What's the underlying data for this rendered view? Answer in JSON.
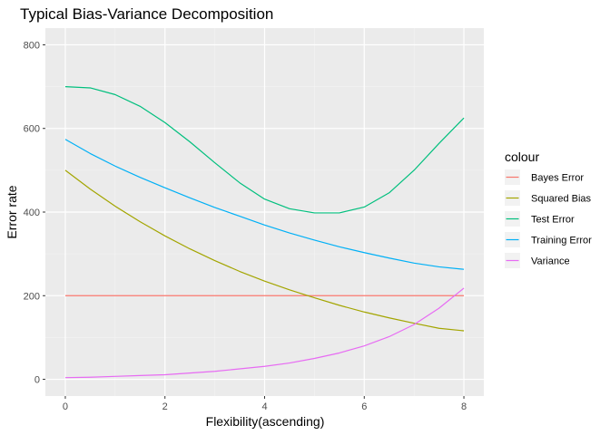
{
  "chart_data": {
    "type": "line",
    "title": "Typical Bias-Variance Decomposition",
    "xlabel": "Flexibility(ascending)",
    "ylabel": "Error rate",
    "xlim": [
      -0.4,
      8.4
    ],
    "ylim": [
      -40,
      840
    ],
    "x_ticks": [
      0,
      2,
      4,
      6,
      8
    ],
    "y_ticks": [
      0,
      200,
      400,
      600,
      800
    ],
    "grid": true,
    "background": "#ebebeb",
    "legend": {
      "title": "colour",
      "position": "right"
    },
    "x": [
      0,
      0.5,
      1,
      1.5,
      2,
      2.5,
      3,
      3.5,
      4,
      4.5,
      5,
      5.5,
      6,
      6.5,
      7,
      7.5,
      8
    ],
    "series": [
      {
        "name": "Bayes Error",
        "color": "#F8766D",
        "values": [
          200,
          200,
          200,
          200,
          200,
          200,
          200,
          200,
          200,
          200,
          200,
          200,
          200,
          200,
          200,
          200,
          200
        ]
      },
      {
        "name": "Squared Bias",
        "color": "#A3A500",
        "values": [
          500,
          455,
          414,
          377,
          343,
          312,
          284,
          258,
          235,
          214,
          195,
          177,
          161,
          147,
          134,
          122,
          116
        ]
      },
      {
        "name": "Test Error",
        "color": "#00BF7D",
        "values": [
          700,
          697,
          681,
          653,
          614,
          568,
          518,
          470,
          431,
          408,
          398,
          398,
          412,
          446,
          500,
          564,
          625
        ]
      },
      {
        "name": "Training Error",
        "color": "#00B0F6",
        "values": [
          574,
          540,
          510,
          483,
          458,
          434,
          411,
          390,
          369,
          350,
          333,
          317,
          303,
          290,
          278,
          269,
          263
        ]
      },
      {
        "name": "Variance",
        "color": "#E76BF3",
        "values": [
          4,
          5,
          7,
          9,
          11,
          15,
          19,
          25,
          31,
          39,
          50,
          63,
          80,
          102,
          131,
          170,
          218
        ]
      }
    ]
  }
}
